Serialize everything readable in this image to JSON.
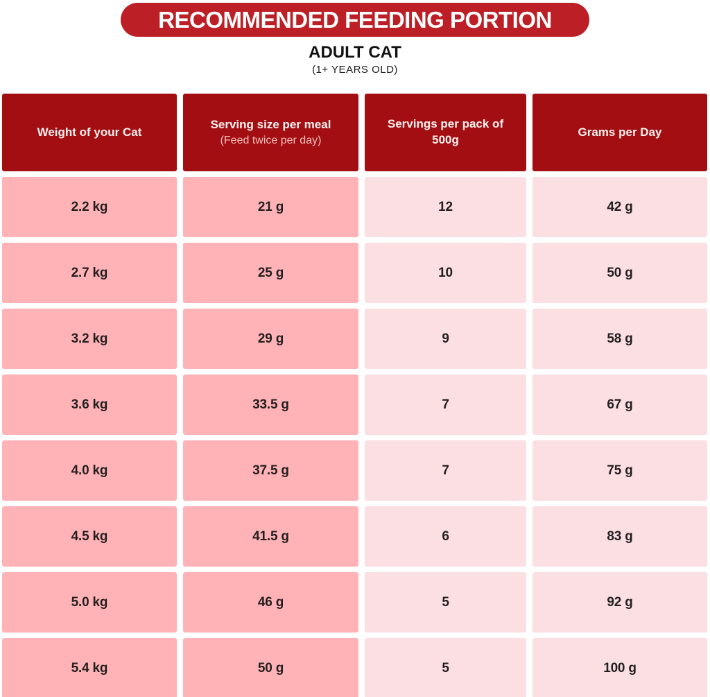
{
  "banner": {
    "title": "RECOMMENDED FEEDING PORTION"
  },
  "subtitle": {
    "title": "ADULT CAT",
    "note": "(1+ YEARS OLD)"
  },
  "table": {
    "columns": [
      {
        "title": "Weight of your Cat",
        "subtitle": ""
      },
      {
        "title": "Serving size per meal",
        "subtitle": "(Feed twice per day)"
      },
      {
        "title": "Servings per pack of 500g",
        "subtitle": ""
      },
      {
        "title": "Grams per Day",
        "subtitle": ""
      }
    ],
    "rows": [
      [
        "2.2 kg",
        "21 g",
        "12",
        "42 g"
      ],
      [
        "2.7 kg",
        "25 g",
        "10",
        "50 g"
      ],
      [
        "3.2 kg",
        "29 g",
        "9",
        "58 g"
      ],
      [
        "3.6 kg",
        "33.5 g",
        "7",
        "67 g"
      ],
      [
        "4.0 kg",
        "37.5 g",
        "7",
        "75 g"
      ],
      [
        "4.5 kg",
        "41.5 g",
        "6",
        "83 g"
      ],
      [
        "5.0 kg",
        "46 g",
        "5",
        "92 g"
      ],
      [
        "5.4 kg",
        "50 g",
        "5",
        "100 g"
      ]
    ]
  },
  "colors": {
    "banner_red": "#BC2026",
    "header_red": "#A30E13",
    "pink_dark": "#FFB3B6",
    "pink_light": "#FBDFE2",
    "text_dark": "#231F20",
    "header_text": "#FDF3F0",
    "header_subtext": "#F1C1BC",
    "page_bg": "#FFFFFF"
  },
  "chart_data": {
    "type": "table",
    "title": "RECOMMENDED FEEDING PORTION",
    "subtitle": "ADULT CAT (1+ YEARS OLD)",
    "columns": [
      "Weight of your Cat",
      "Serving size per meal (Feed twice per day)",
      "Servings per pack of 500g",
      "Grams per Day"
    ],
    "rows": [
      [
        "2.2 kg",
        "21 g",
        "12",
        "42 g"
      ],
      [
        "2.7 kg",
        "25 g",
        "10",
        "50 g"
      ],
      [
        "3.2 kg",
        "29 g",
        "9",
        "58 g"
      ],
      [
        "3.6 kg",
        "33.5 g",
        "7",
        "67 g"
      ],
      [
        "4.0 kg",
        "37.5 g",
        "7",
        "75 g"
      ],
      [
        "4.5 kg",
        "41.5 g",
        "6",
        "83 g"
      ],
      [
        "5.0 kg",
        "46 g",
        "5",
        "92 g"
      ],
      [
        "5.4 kg",
        "50 g",
        "5",
        "100 g"
      ]
    ]
  }
}
